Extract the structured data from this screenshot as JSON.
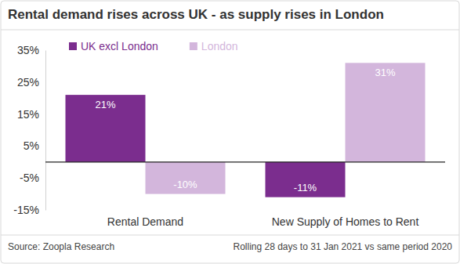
{
  "chart_data": {
    "type": "bar",
    "title": "Rental demand rises across UK - as supply rises in London",
    "categories": [
      "Rental Demand",
      "New Supply of Homes to Rent"
    ],
    "series": [
      {
        "name": "UK excl London",
        "color": "#7b2d8e",
        "values": [
          21,
          -11
        ],
        "value_labels": [
          "21%",
          "-11%"
        ]
      },
      {
        "name": "London",
        "color": "#d3b6dc",
        "values": [
          -10,
          31
        ],
        "value_labels": [
          "-10%",
          "31%"
        ]
      }
    ],
    "ylim": [
      -15,
      35
    ],
    "yticks": [
      {
        "value": 35,
        "label": "35%"
      },
      {
        "value": 25,
        "label": "25%"
      },
      {
        "value": 15,
        "label": "15%"
      },
      {
        "value": 5,
        "label": "5%"
      },
      {
        "value": -5,
        "label": "-5%"
      },
      {
        "value": -15,
        "label": "-15%"
      }
    ],
    "grid": false,
    "legend": "top-left",
    "data_labels": true,
    "annotations": [
      "Source: Zoopla Research",
      "Rolling 28 days to 31 Jan 2021 vs same period 2020"
    ]
  }
}
